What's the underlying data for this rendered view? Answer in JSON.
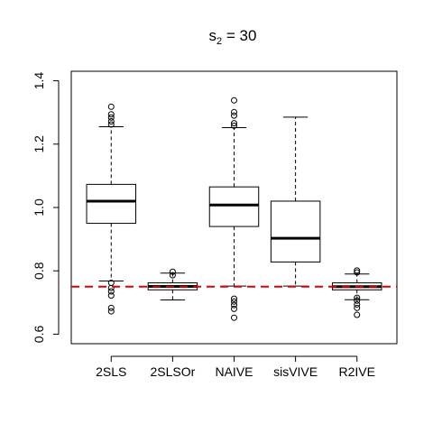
{
  "chart_data": {
    "type": "boxplot",
    "title": {
      "base": "s",
      "sub": "2",
      "rest": " = 30"
    },
    "xlabel": "",
    "ylabel": "",
    "ylim": [
      0.57,
      1.43
    ],
    "y_ticks": [
      "0.6",
      "0.8",
      "1.0",
      "1.2",
      "1.4"
    ],
    "y_tick_values": [
      0.6,
      0.8,
      1.0,
      1.2,
      1.4
    ],
    "grid": false,
    "reference_line": {
      "y": 0.75,
      "color": "#dd0000",
      "style": "dashed"
    },
    "categories": [
      "2SLS",
      "2SLSOr",
      "NAIVE",
      "sisVIVE",
      "R2IVE"
    ],
    "boxes": [
      {
        "label": "2SLS",
        "whisker_low": 0.768,
        "q1": 0.95,
        "median": 1.02,
        "q3": 1.073,
        "whisker_high": 1.255,
        "outliers": [
          0.672,
          0.683,
          0.722,
          0.735,
          0.746,
          0.762,
          1.262,
          1.272,
          1.284,
          1.294,
          1.318
        ]
      },
      {
        "label": "2SLSOr",
        "whisker_low": 0.708,
        "q1": 0.74,
        "median": 0.751,
        "q3": 0.762,
        "whisker_high": 0.793,
        "outliers": [
          0.786,
          0.797
        ]
      },
      {
        "label": "NAIVE",
        "whisker_low": 0.752,
        "q1": 0.94,
        "median": 1.008,
        "q3": 1.065,
        "whisker_high": 1.252,
        "outliers": [
          0.652,
          0.68,
          0.692,
          0.703,
          0.712,
          1.258,
          1.266,
          1.29,
          1.301,
          1.338
        ]
      },
      {
        "label": "sisVIVE",
        "whisker_low": 0.752,
        "q1": 0.828,
        "median": 0.903,
        "q3": 1.02,
        "whisker_high": 1.285,
        "outliers": []
      },
      {
        "label": "R2IVE",
        "whisker_low": 0.709,
        "q1": 0.74,
        "median": 0.75,
        "q3": 0.762,
        "whisker_high": 0.79,
        "outliers": [
          0.661,
          0.683,
          0.694,
          0.706,
          0.715,
          0.795,
          0.801
        ]
      }
    ],
    "colors": {
      "box_stroke": "#000000",
      "box_fill": "#ffffff",
      "reference": "#dd0000"
    }
  }
}
